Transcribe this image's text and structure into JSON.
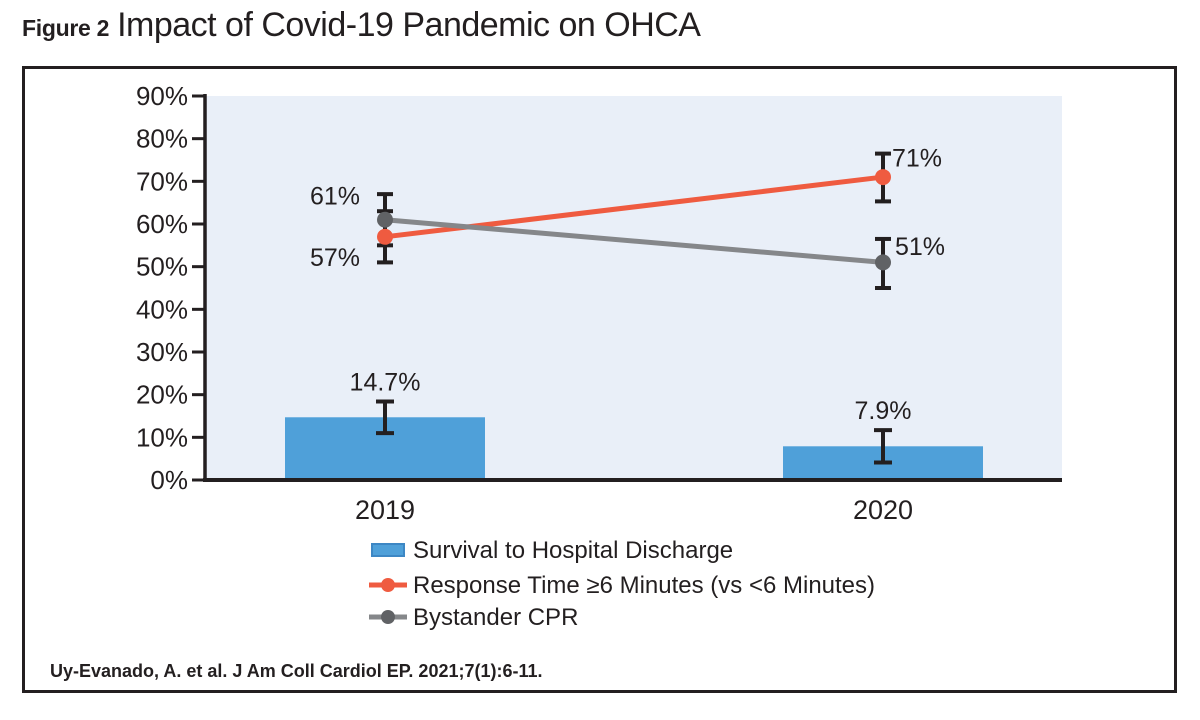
{
  "figure": {
    "label": "Figure 2",
    "title": "Impact of Covid-19 Pandemic on OHCA"
  },
  "citation": "Uy-Evanado, A. et al. J Am Coll Cardiol EP. 2021;7(1):6-11.",
  "colors": {
    "text": "#231f20",
    "axis": "#231f20",
    "error_bar": "#231f20",
    "plot_bg": "#e9eff8",
    "bar_blue": "#4fa0d9",
    "bar_blue_border": "#3d87c4",
    "line_red": "#ef5b40",
    "line_gray": "#85878a",
    "marker_gray": "#606265"
  },
  "chart_data": {
    "type": "combo",
    "title": "Impact of Covid-19 Pandemic on OHCA",
    "categories": [
      "2019",
      "2020"
    ],
    "y_axis": {
      "min": 0,
      "max": 90,
      "step": 10,
      "suffix": "%"
    },
    "grid": false,
    "legend_position": "bottom",
    "series": [
      {
        "name": "Survival to Hospital Discharge",
        "type": "bar",
        "color": "#4fa0d9",
        "values": [
          14.7,
          7.9
        ],
        "point_labels": [
          "14.7%",
          "7.9%"
        ],
        "error_low": [
          11.0,
          4.1
        ],
        "error_high": [
          18.4,
          11.7
        ]
      },
      {
        "name": "Response Time ≥6 Minutes (vs <6  Minutes)",
        "type": "line",
        "color": "#ef5b40",
        "marker_color": "#ef5b40",
        "values": [
          57,
          71
        ],
        "point_labels": [
          "57%",
          "71%"
        ],
        "error_low": [
          51,
          65.3
        ],
        "error_high": [
          63,
          76.5
        ]
      },
      {
        "name": "Bystander CPR",
        "type": "line",
        "color": "#85878a",
        "marker_color": "#606265",
        "values": [
          61,
          51
        ],
        "point_labels": [
          "61%",
          "51%"
        ],
        "error_low": [
          55,
          45
        ],
        "error_high": [
          67,
          56.5
        ]
      }
    ]
  }
}
